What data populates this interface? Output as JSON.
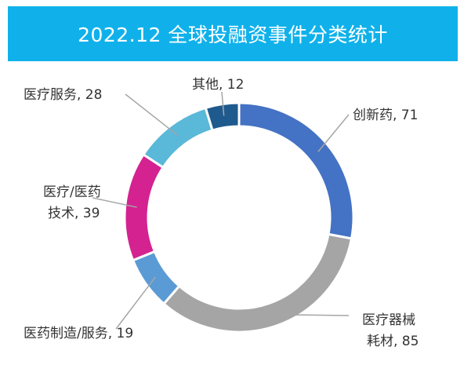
{
  "title": "2022.12 全球投融资事件分类统计",
  "chart_data": {
    "type": "pie",
    "variant": "donut",
    "title": "2022.12 全球投融资事件分类统计",
    "legend": "none",
    "categories": [
      "创新药",
      "医疗器械耗材",
      "医药制造/服务",
      "医疗/医药技术",
      "医疗服务",
      "其他"
    ],
    "values": [
      71,
      85,
      19,
      39,
      28,
      12
    ],
    "colors": [
      "#4472c4",
      "#a5a5a5",
      "#5b9bd5",
      "#d42291",
      "#5ab8d8",
      "#1f5a8e"
    ],
    "labels": [
      {
        "lines": [
          "创新药, 71"
        ]
      },
      {
        "lines": [
          "医疗器械",
          "耗材, 85"
        ]
      },
      {
        "lines": [
          "医药制造/服务, 19"
        ]
      },
      {
        "lines": [
          "医疗/医药",
          "技术, 39"
        ]
      },
      {
        "lines": [
          "医疗服务, 28"
        ]
      },
      {
        "lines": [
          "其他, 12"
        ]
      }
    ]
  }
}
